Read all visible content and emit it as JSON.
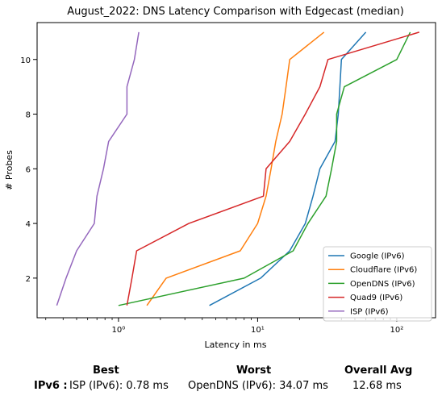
{
  "chart_data": {
    "type": "line",
    "title": "August_2022: DNS Latency Comparison with Edgecast (median)",
    "xlabel": "Latency in ms",
    "ylabel": "# Probes",
    "xscale": "log",
    "xlim": [
      0.26,
      190
    ],
    "ylim": [
      0.55,
      11.35
    ],
    "x_tick_labels": [
      "10⁰",
      "10¹",
      "10²"
    ],
    "x_ticks": [
      1,
      10,
      100
    ],
    "y_ticks": [
      2,
      4,
      6,
      8,
      10
    ],
    "y_tick_labels": [
      "2",
      "4",
      "6",
      "8",
      "10"
    ],
    "grid": false,
    "legend_position": "lower-right",
    "series": [
      {
        "name": "Google (IPv6)",
        "color": "#1f77b4",
        "x": [
          4.5,
          10.5,
          17,
          22,
          25,
          28,
          36,
          38,
          39,
          40,
          60
        ],
        "y": [
          1,
          2,
          3,
          4,
          5,
          6,
          7,
          8,
          9,
          10,
          11
        ]
      },
      {
        "name": "Cloudflare (IPv6)",
        "color": "#ff7f0e",
        "x": [
          1.6,
          2.2,
          7.5,
          10,
          11.5,
          12.5,
          13.5,
          15,
          16,
          17,
          30
        ],
        "y": [
          1,
          2,
          3,
          4,
          5,
          6,
          7,
          8,
          9,
          10,
          11
        ]
      },
      {
        "name": "OpenDNS (IPv6)",
        "color": "#2ca02c",
        "x": [
          1,
          8,
          18,
          23,
          31,
          34,
          37,
          37,
          42,
          100,
          125
        ],
        "y": [
          1,
          2,
          3,
          4,
          5,
          6,
          7,
          8,
          9,
          10,
          11
        ]
      },
      {
        "name": "Quad9 (IPv6)",
        "color": "#d62728",
        "x": [
          1.15,
          1.25,
          1.35,
          3.2,
          11,
          11.5,
          17,
          22,
          28,
          32,
          145
        ],
        "y": [
          1,
          2,
          3,
          4,
          5,
          6,
          7,
          8,
          9,
          10,
          11
        ]
      },
      {
        "name": "ISP (IPv6)",
        "color": "#9467bd",
        "x": [
          0.36,
          0.42,
          0.5,
          0.67,
          0.7,
          0.78,
          0.85,
          1.15,
          1.15,
          1.3,
          1.4
        ],
        "y": [
          1,
          2,
          3,
          4,
          5,
          6,
          7,
          8,
          9,
          10,
          11
        ]
      }
    ]
  },
  "summary": {
    "best_header": "Best",
    "worst_header": "Worst",
    "avg_header": "Overall Avg",
    "row_label": "IPv6 :",
    "best_value": "ISP (IPv6): 0.78 ms",
    "worst_value": "OpenDNS (IPv6): 34.07 ms",
    "avg_value": "12.68 ms"
  }
}
